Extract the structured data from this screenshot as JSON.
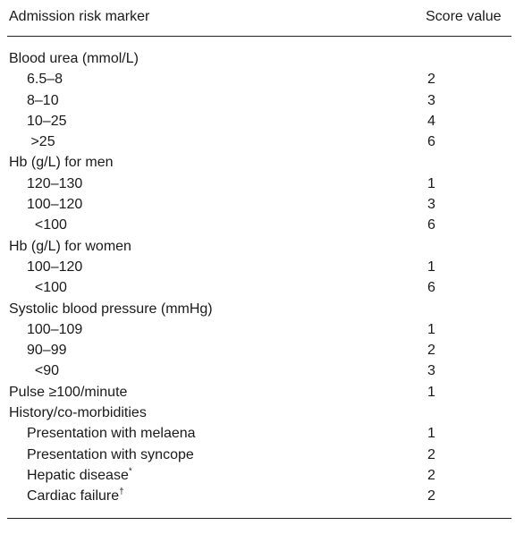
{
  "table": {
    "header": {
      "marker": "Admission risk marker",
      "score": "Score value"
    },
    "rows": [
      {
        "level": 0,
        "label": "Blood urea (mmol/L)",
        "score": ""
      },
      {
        "level": 1,
        "label": "6.5–8",
        "score": "2"
      },
      {
        "level": 1,
        "label": "8–10",
        "score": "3"
      },
      {
        "level": 1,
        "label": "10–25",
        "score": "4"
      },
      {
        "level": 1,
        "label": " >25",
        "score": "6"
      },
      {
        "level": 0,
        "label": "Hb (g/L) for men",
        "score": ""
      },
      {
        "level": 1,
        "label": "120–130",
        "score": "1"
      },
      {
        "level": 1,
        "label": "100–120",
        "score": "3"
      },
      {
        "level": 1,
        "label": "  <100",
        "score": "6"
      },
      {
        "level": 0,
        "label": "Hb (g/L) for women",
        "score": ""
      },
      {
        "level": 1,
        "label": "100–120",
        "score": "1"
      },
      {
        "level": 1,
        "label": "  <100",
        "score": "6"
      },
      {
        "level": 0,
        "label": "Systolic blood pressure (mmHg)",
        "score": ""
      },
      {
        "level": 1,
        "label": "100–109",
        "score": "1"
      },
      {
        "level": 1,
        "label": "90–99",
        "score": "2"
      },
      {
        "level": 1,
        "label": "  <90",
        "score": "3"
      },
      {
        "level": 0,
        "label": "Pulse ≥100/minute",
        "score": "1"
      },
      {
        "level": 0,
        "label": "History/co-morbidities",
        "score": ""
      },
      {
        "level": 1,
        "label": "Presentation with melaena",
        "score": "1"
      },
      {
        "level": 1,
        "label": "Presentation with syncope",
        "score": "2"
      },
      {
        "level": 1,
        "label": "Hepatic disease",
        "mark": "*",
        "score": "2"
      },
      {
        "level": 1,
        "label": "Cardiac failure",
        "mark": "†",
        "score": "2"
      }
    ]
  }
}
